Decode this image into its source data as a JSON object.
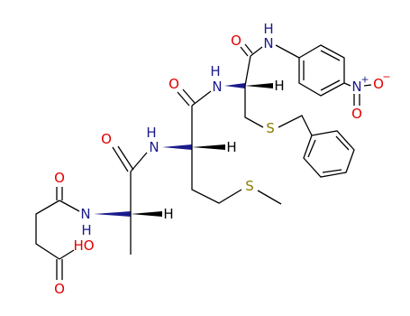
{
  "atoms": [
    {
      "label": "O"
    },
    {
      "label": "HO"
    },
    {
      "label": "O"
    },
    {
      "label": "N"
    },
    {
      "label": "H"
    },
    {
      "label": "H"
    },
    {
      "label": "O"
    },
    {
      "label": "H"
    },
    {
      "label": "N"
    },
    {
      "label": "H"
    },
    {
      "label": "S"
    },
    {
      "label": "O"
    },
    {
      "label": "H"
    },
    {
      "label": "N"
    },
    {
      "label": "H"
    },
    {
      "label": "S"
    },
    {
      "label": "O"
    },
    {
      "label": "N"
    },
    {
      "label": "H"
    },
    {
      "label": "N"
    },
    {
      "label": "+"
    },
    {
      "label": "O"
    },
    {
      "label": "−"
    },
    {
      "label": "O"
    }
  ]
}
